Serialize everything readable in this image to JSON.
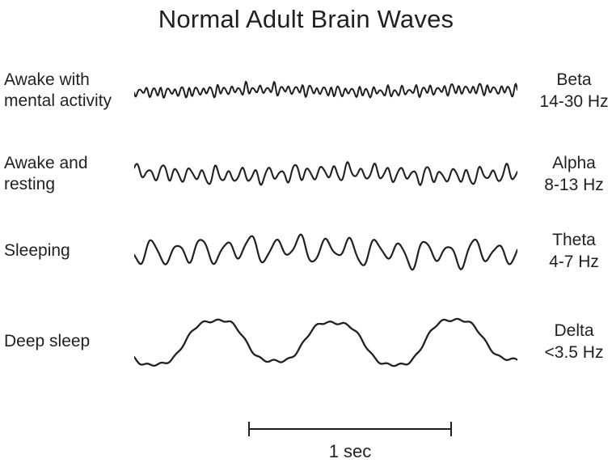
{
  "title": "Normal Adult Brain Waves",
  "colors": {
    "ink": "#231f20",
    "background": "#ffffff"
  },
  "rows": [
    {
      "state": "Awake with\nmental activity",
      "band": "Beta",
      "freq": "14-30 Hz",
      "wave": {
        "seed": 11,
        "cycles": 54,
        "amp": 6,
        "modCycles": 6.5,
        "modDepth": 0.45,
        "stroke": 2,
        "components": [
          {
            "f": 1,
            "a": 1
          },
          {
            "f": 0.55,
            "a": 0.4
          },
          {
            "f": 1.5,
            "a": 0.25
          },
          {
            "f": 0.035,
            "a": 0.35
          }
        ]
      }
    },
    {
      "state": "Awake and\nresting",
      "band": "Alpha",
      "freq": "8-13 Hz",
      "wave": {
        "seed": 23,
        "cycles": 29,
        "amp": 9.5,
        "modCycles": 4.5,
        "modDepth": 0.38,
        "stroke": 2.1,
        "components": [
          {
            "f": 1,
            "a": 1
          },
          {
            "f": 0.5,
            "a": 0.35
          },
          {
            "f": 1.9,
            "a": 0.15
          },
          {
            "f": 0.06,
            "a": 0.3
          }
        ]
      }
    },
    {
      "state": "Sleeping",
      "band": "Theta",
      "freq": "4-7 Hz",
      "wave": {
        "seed": 37,
        "cycles": 15.5,
        "amp": 15,
        "modCycles": 3.5,
        "modDepth": 0.3,
        "stroke": 2.2,
        "components": [
          {
            "f": 1,
            "a": 1
          },
          {
            "f": 0.52,
            "a": 0.3
          },
          {
            "f": 2.1,
            "a": 0.15
          },
          {
            "f": 0.08,
            "a": 0.25
          }
        ]
      }
    },
    {
      "state": "Deep sleep",
      "band": "Delta",
      "freq": "<3.5 Hz",
      "wave": {
        "seed": 2,
        "cycles": 3.2,
        "amp": 30,
        "modCycles": 1.3,
        "modDepth": 0.1,
        "stroke": 2.3,
        "components": [
          {
            "f": 1,
            "a": 1,
            "p": -2.65
          },
          {
            "f": 3,
            "a": 0.11,
            "p": -7.95
          },
          {
            "f": 0.5,
            "a": 0.1
          },
          {
            "f": 8.5,
            "a": 0.05
          }
        ]
      }
    }
  ],
  "scale_bar": {
    "label": "1 sec"
  }
}
